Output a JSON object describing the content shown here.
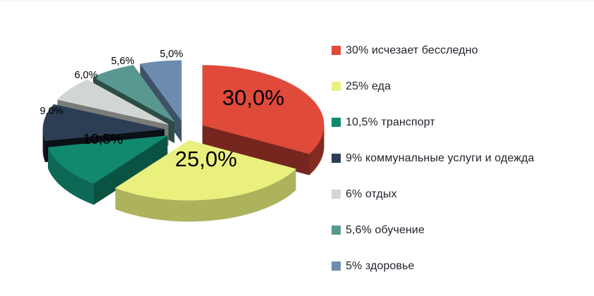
{
  "chart_data": {
    "type": "pie",
    "style": "3d-exploded",
    "background_color": "#FFFFFF",
    "legend_position": "right",
    "data_label_color": "#000000",
    "legend_text_color": "#20242C",
    "slices": [
      {
        "key": "disappears",
        "legend_label": "30% исчезает бесследно",
        "value": 30,
        "data_label": "30,0%",
        "color": "#DF4A3B"
      },
      {
        "key": "food",
        "legend_label": "25% еда",
        "value": 25,
        "data_label": "25,0%",
        "color": "#EAF07E"
      },
      {
        "key": "transport",
        "legend_label": "10,5% транспорт",
        "value": 10.5,
        "data_label": "10,5%",
        "color": "#11896E"
      },
      {
        "key": "utilities-clothes",
        "legend_label": "9% коммунальные услуги и одежда",
        "value": 9,
        "data_label": "9,0%",
        "color": "#2C3E53"
      },
      {
        "key": "leisure",
        "legend_label": "6% отдых",
        "value": 6,
        "data_label": "6,0%",
        "color": "#D2D6D3"
      },
      {
        "key": "education",
        "legend_label": "5,6% обучение",
        "value": 5.6,
        "data_label": "5,6%",
        "color": "#589890"
      },
      {
        "key": "health",
        "legend_label": "5% здоровье",
        "value": 5,
        "data_label": "5,0%",
        "color": "#6C8CB0"
      }
    ]
  }
}
